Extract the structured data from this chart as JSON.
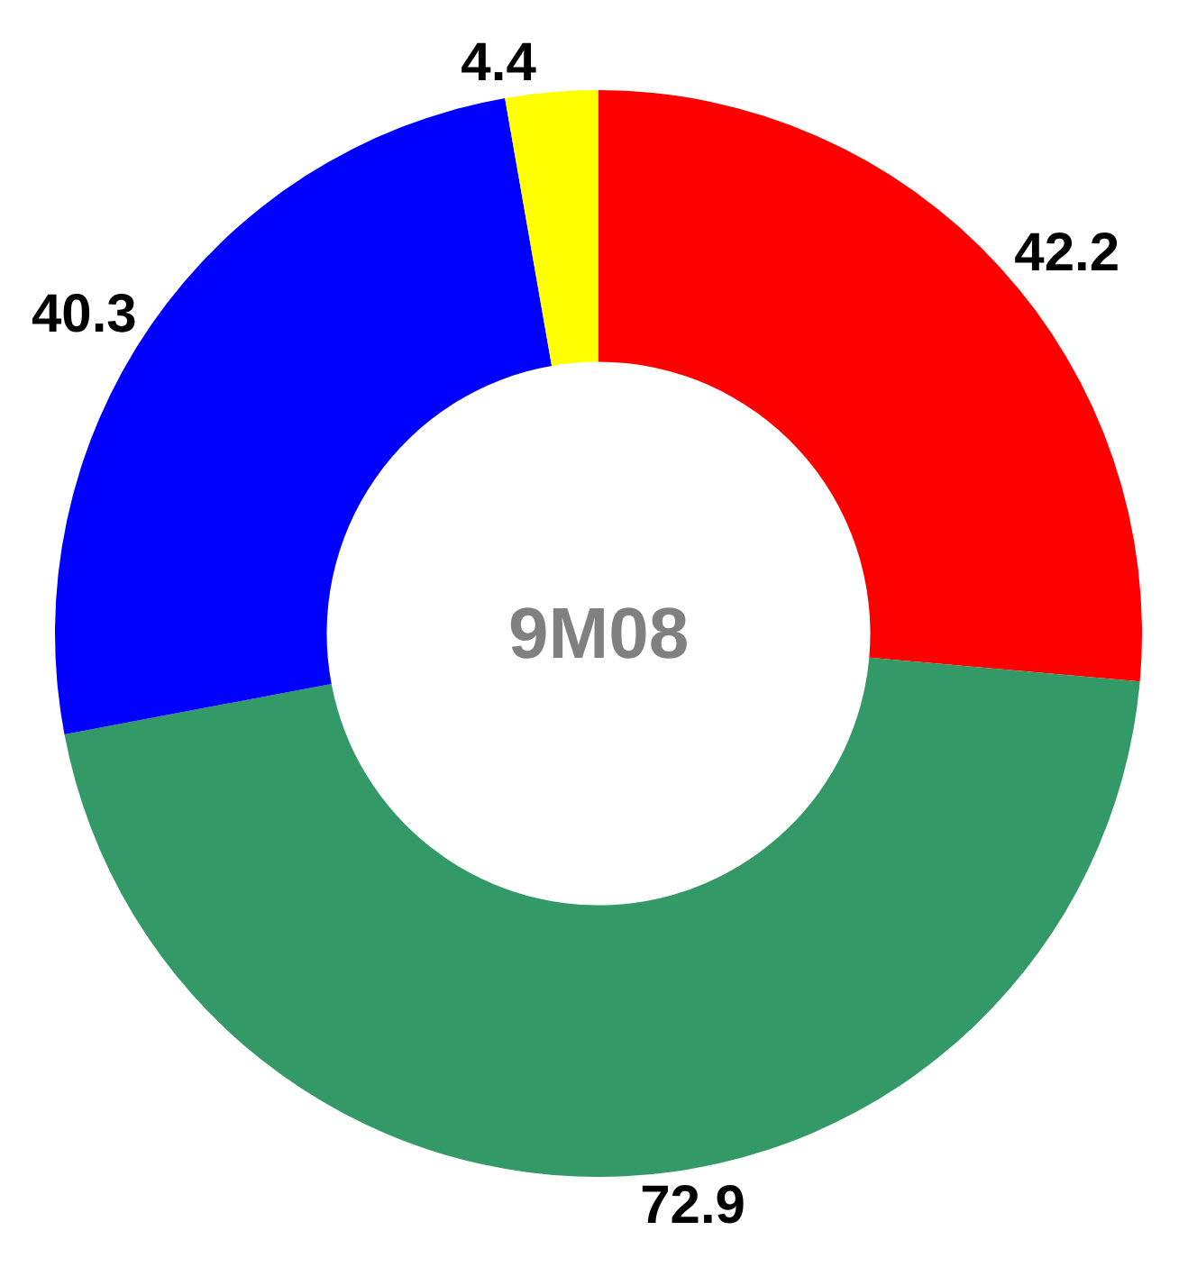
{
  "chart_data": {
    "type": "donut",
    "categories": [
      null,
      null,
      null,
      null
    ],
    "values": [
      42.2,
      72.9,
      40.3,
      4.4
    ],
    "colors": [
      "#ff0000",
      "#339966",
      "#0000ff",
      "#ffff00"
    ],
    "data_labels": true,
    "legend": false,
    "annotations": [
      "9M08"
    ]
  }
}
